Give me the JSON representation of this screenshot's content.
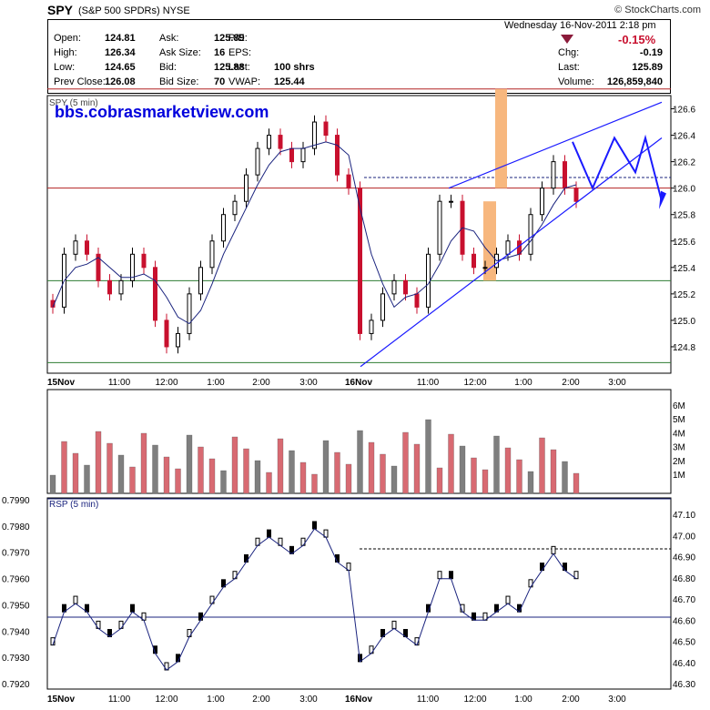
{
  "header": {
    "symbol": "SPY",
    "description": "(S&P 500 SPDRs)",
    "exchange": "NYSE",
    "source": "© StockCharts.com",
    "date": "Wednesday  16-Nov-2011  2:18 pm",
    "change_pct": "-0.15%",
    "quote_left": [
      {
        "label": "Open:",
        "value": "124.81"
      },
      {
        "label": "High:",
        "value": "126.34"
      },
      {
        "label": "Low:",
        "value": "124.65"
      },
      {
        "label": "Prev Close:",
        "value": "126.08"
      }
    ],
    "quote_mid": [
      {
        "label": "Ask:",
        "value": "125.89"
      },
      {
        "label": "Ask Size:",
        "value": "16"
      },
      {
        "label": "Bid:",
        "value": "125.88"
      },
      {
        "label": "Bid Size:",
        "value": "70"
      }
    ],
    "quote_right": [
      {
        "label": "P/E:",
        "value": ""
      },
      {
        "label": "EPS:",
        "value": ""
      },
      {
        "label": "Last:",
        "value": "100 shrs"
      },
      {
        "label": "VWAP:",
        "value": "125.44"
      }
    ],
    "quote_far": [
      {
        "label": "Chg:",
        "value": "-0.19"
      },
      {
        "label": "Last:",
        "value": "125.89"
      },
      {
        "label": "Volume:",
        "value": "126,859,840"
      }
    ]
  },
  "annotation": "bbs.cobrasmarketview.com",
  "colors": {
    "up": "#000000",
    "down": "#c8102e",
    "ma": "#1a237e",
    "trend": "#1a1aff",
    "resistance": "#b22222",
    "support": "#2e7d32",
    "orange": "#f7b77e",
    "vol_up": "#7f7f7f",
    "vol_down": "#d86a72"
  },
  "chart_data": [
    {
      "type": "candlestick",
      "title": "SPY (5 min)",
      "ylim": [
        124.6,
        126.7
      ],
      "y_ticks": [
        "126.6",
        "126.4",
        "126.2",
        "126.0",
        "125.8",
        "125.6",
        "125.4",
        "125.2",
        "125.0",
        "124.8"
      ],
      "x_ticks": [
        "15Nov",
        "11:00",
        "12:00",
        "1:00",
        "2:00",
        "3:00",
        "16Nov",
        "11:00",
        "12:00",
        "1:00",
        "2:00",
        "3:00"
      ],
      "close": [
        125.1,
        125.5,
        125.6,
        125.5,
        125.3,
        125.2,
        125.3,
        125.5,
        125.4,
        125.0,
        124.8,
        124.9,
        125.2,
        125.4,
        125.6,
        125.8,
        125.9,
        126.1,
        126.3,
        126.4,
        126.3,
        126.2,
        126.3,
        126.5,
        126.4,
        126.1,
        126.0,
        124.9,
        125.0,
        125.2,
        125.3,
        125.2,
        125.1,
        125.5,
        125.9,
        125.9,
        125.5,
        125.4,
        125.4,
        125.5,
        125.6,
        125.5,
        125.8,
        126.0,
        126.2,
        126.0,
        125.9
      ],
      "horizontal_levels": [
        126.75,
        126.0,
        125.3,
        124.68
      ],
      "dashed_level": 126.08
    },
    {
      "type": "bar",
      "title": "Volume",
      "y_ticks": [
        "6M",
        "5M",
        "4M",
        "3M",
        "2M",
        "1M"
      ]
    },
    {
      "type": "line",
      "title": "RSP (5 min)",
      "left_ticks": [
        "0.7990",
        "0.7980",
        "0.7970",
        "0.7960",
        "0.7950",
        "0.7940",
        "0.7930",
        "0.7920"
      ],
      "right_ticks": [
        "47.10",
        "47.00",
        "46.90",
        "46.80",
        "46.70",
        "46.60",
        "46.50",
        "46.40",
        "46.30"
      ]
    }
  ]
}
